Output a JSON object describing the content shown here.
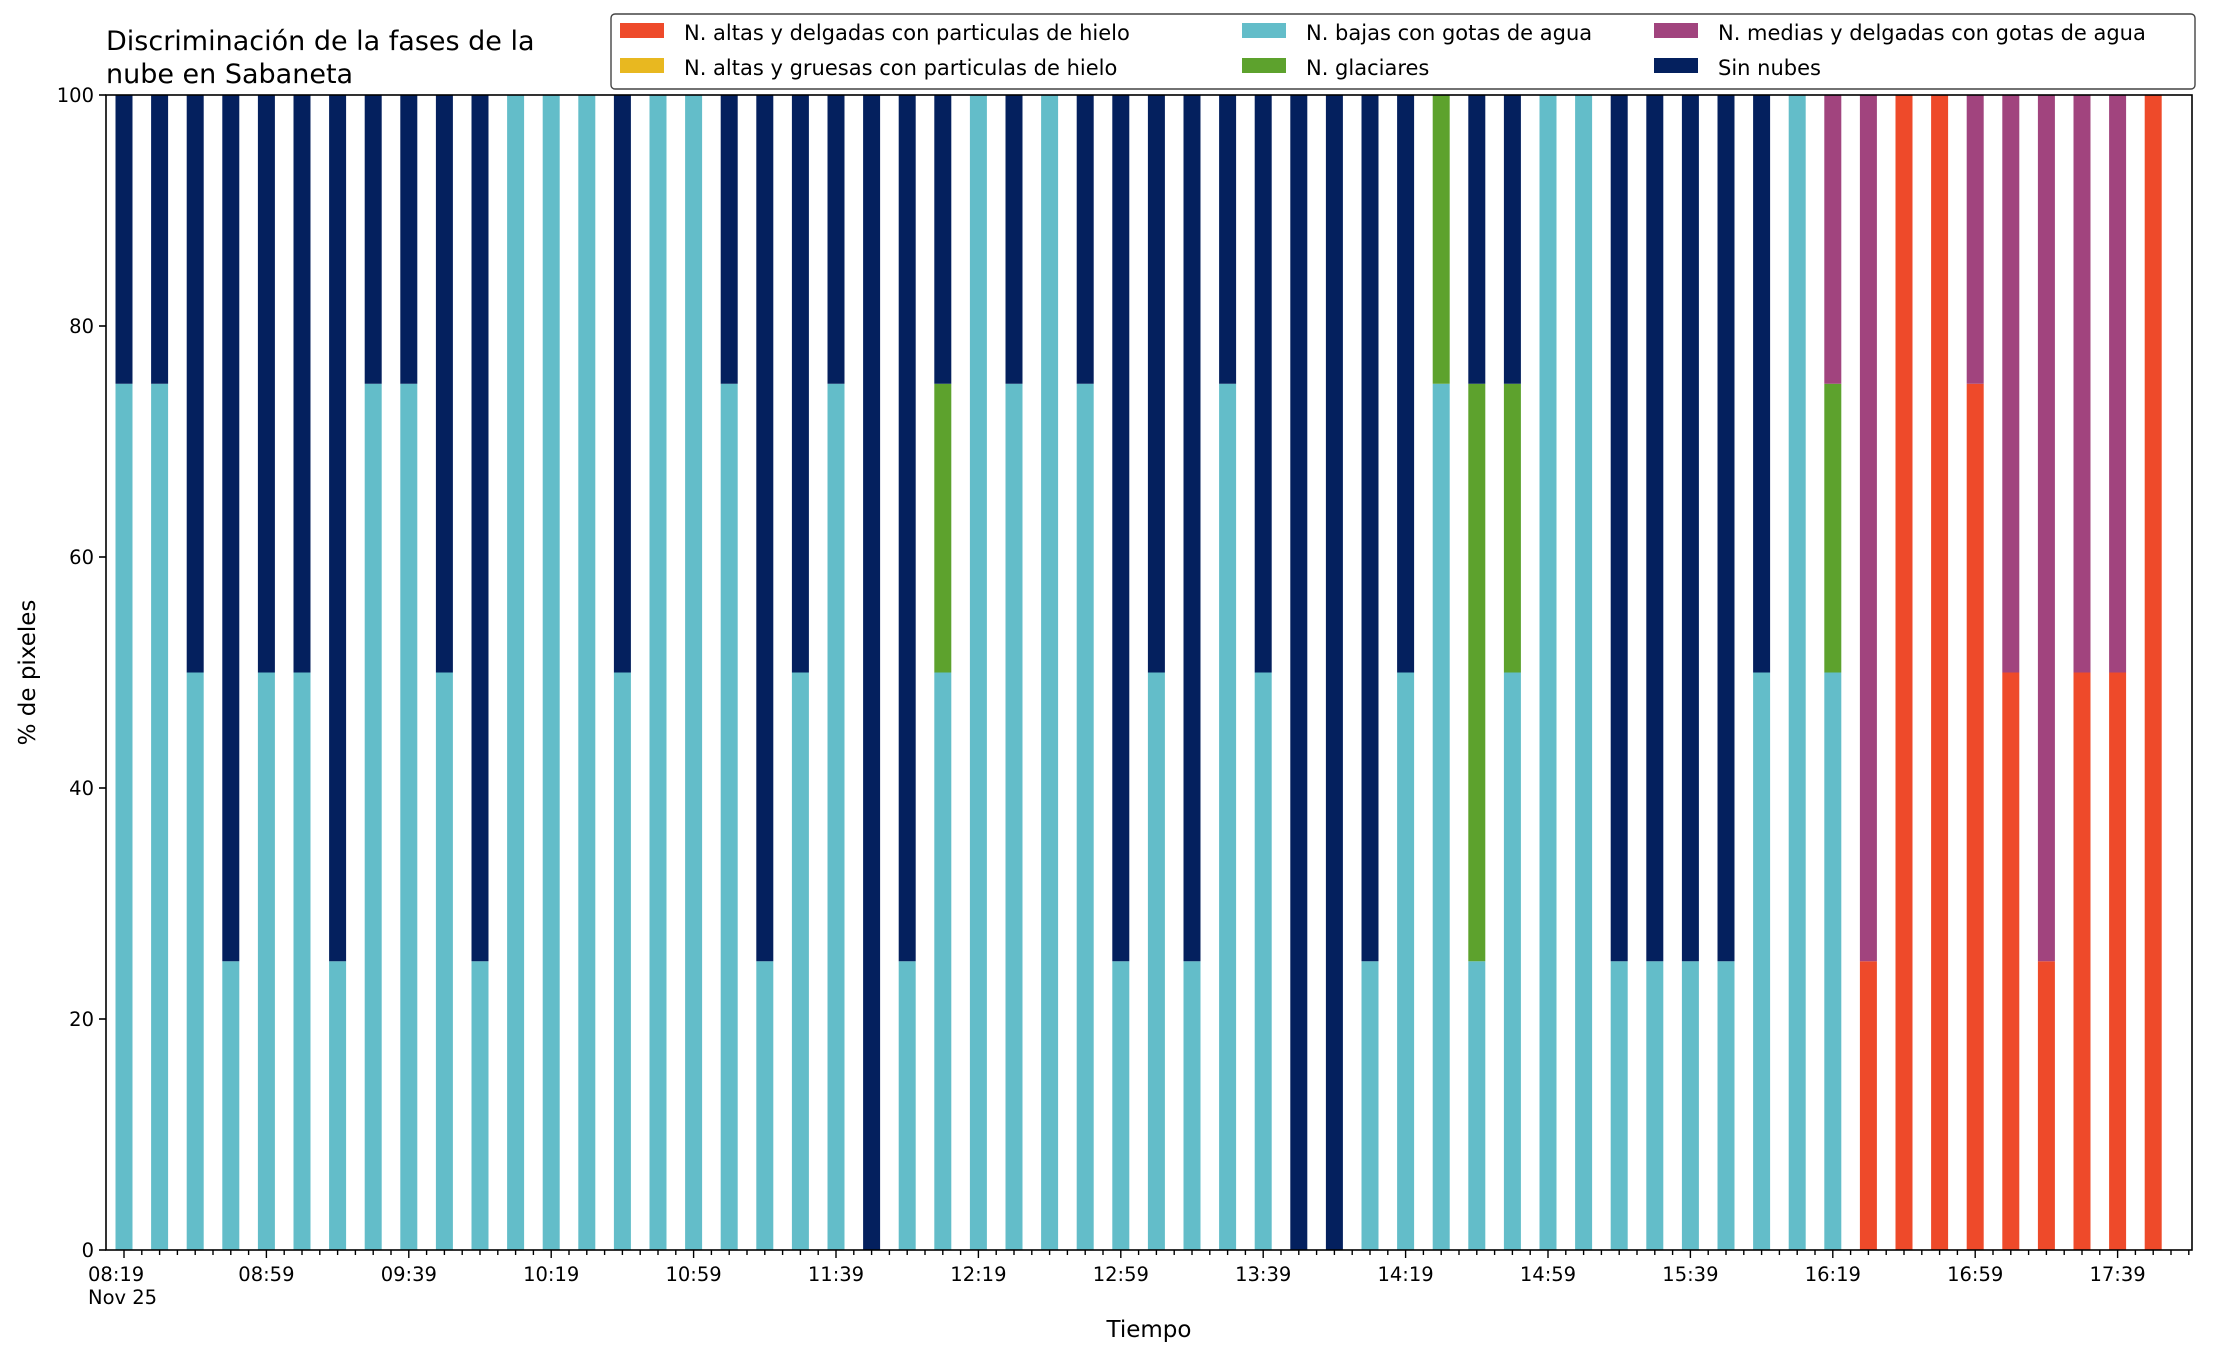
{
  "chart_data": {
    "type": "bar",
    "stacked": true,
    "title": "Discriminación de la fases de la\nnube en Sabaneta",
    "xlabel": "Tiempo",
    "ylabel": "% de pixeles",
    "ylim": [
      0,
      100
    ],
    "yticks": [
      0,
      20,
      40,
      60,
      80,
      100
    ],
    "grid": false,
    "legend_position": "top-right",
    "x_tick_labels": [
      "08:19\nNov 25",
      "08:59",
      "09:39",
      "10:19",
      "10:59",
      "11:39",
      "12:19",
      "12:59",
      "13:39",
      "14:19",
      "14:59",
      "15:39",
      "16:19",
      "16:59",
      "17:39"
    ],
    "categories": [
      "08:19",
      "08:29",
      "08:39",
      "08:49",
      "08:59",
      "09:09",
      "09:19",
      "09:29",
      "09:39",
      "09:49",
      "09:59",
      "10:09",
      "10:19",
      "10:29",
      "10:39",
      "10:49",
      "10:59",
      "11:09",
      "11:19",
      "11:29",
      "11:39",
      "11:49",
      "11:59",
      "12:09",
      "12:19",
      "12:29",
      "12:39",
      "12:49",
      "12:59",
      "13:09",
      "13:19",
      "13:29",
      "13:39",
      "13:49",
      "13:59",
      "14:09",
      "14:19",
      "14:29",
      "14:39",
      "14:49",
      "14:59",
      "15:09",
      "15:19",
      "15:29",
      "15:39",
      "15:49",
      "15:59",
      "16:09",
      "16:19",
      "16:29",
      "16:39",
      "16:49",
      "16:59",
      "17:09",
      "17:19",
      "17:29",
      "17:39",
      "17:49"
    ],
    "series": [
      {
        "name": "N. altas y delgadas con particulas de hielo",
        "color": "#ee4a2a",
        "values": [
          0,
          0,
          0,
          0,
          0,
          0,
          0,
          0,
          0,
          0,
          0,
          0,
          0,
          0,
          0,
          0,
          0,
          0,
          0,
          0,
          0,
          0,
          0,
          0,
          0,
          0,
          0,
          0,
          0,
          0,
          0,
          0,
          0,
          0,
          0,
          0,
          0,
          0,
          0,
          0,
          0,
          0,
          0,
          0,
          0,
          0,
          0,
          0,
          0,
          25,
          100,
          100,
          75,
          50,
          25,
          50,
          50,
          100
        ]
      },
      {
        "name": "N. altas y gruesas con particulas de hielo",
        "color": "#e8b820",
        "values": [
          0,
          0,
          0,
          0,
          0,
          0,
          0,
          0,
          0,
          0,
          0,
          0,
          0,
          0,
          0,
          0,
          0,
          0,
          0,
          0,
          0,
          0,
          0,
          0,
          0,
          0,
          0,
          0,
          0,
          0,
          0,
          0,
          0,
          0,
          0,
          0,
          0,
          0,
          0,
          0,
          0,
          0,
          0,
          0,
          0,
          0,
          0,
          0,
          0,
          0,
          0,
          0,
          0,
          0,
          0,
          0,
          0,
          0
        ]
      },
      {
        "name": "N. bajas con gotas de agua",
        "color": "#63bdc9",
        "values": [
          75,
          75,
          50,
          25,
          50,
          50,
          25,
          75,
          75,
          50,
          25,
          100,
          100,
          100,
          50,
          100,
          100,
          75,
          25,
          50,
          75,
          0,
          25,
          50,
          100,
          75,
          100,
          75,
          25,
          50,
          25,
          75,
          50,
          0,
          0,
          25,
          50,
          75,
          25,
          50,
          100,
          100,
          25,
          25,
          25,
          25,
          50,
          100,
          50,
          0,
          0,
          0,
          0,
          0,
          0,
          0,
          0,
          0
        ]
      },
      {
        "name": "N. glaciares",
        "color": "#5da22d",
        "values": [
          0,
          0,
          0,
          0,
          0,
          0,
          0,
          0,
          0,
          0,
          0,
          0,
          0,
          0,
          0,
          0,
          0,
          0,
          0,
          0,
          0,
          0,
          0,
          25,
          0,
          0,
          0,
          0,
          0,
          0,
          0,
          0,
          0,
          0,
          0,
          0,
          0,
          25,
          50,
          25,
          0,
          0,
          0,
          0,
          0,
          0,
          0,
          0,
          25,
          0,
          0,
          0,
          0,
          0,
          0,
          0,
          0,
          0
        ]
      },
      {
        "name": "N. medias y delgadas con gotas de agua",
        "color": "#a1447e",
        "values": [
          0,
          0,
          0,
          0,
          0,
          0,
          0,
          0,
          0,
          0,
          0,
          0,
          0,
          0,
          0,
          0,
          0,
          0,
          0,
          0,
          0,
          0,
          0,
          0,
          0,
          0,
          0,
          0,
          0,
          0,
          0,
          0,
          0,
          0,
          0,
          0,
          0,
          0,
          0,
          0,
          0,
          0,
          0,
          0,
          0,
          0,
          0,
          0,
          25,
          75,
          0,
          0,
          25,
          50,
          75,
          50,
          50,
          0
        ]
      },
      {
        "name": "Sin nubes",
        "color": "#04205e",
        "values": [
          25,
          25,
          50,
          75,
          50,
          50,
          75,
          25,
          25,
          50,
          75,
          0,
          0,
          0,
          50,
          0,
          0,
          25,
          75,
          50,
          25,
          100,
          75,
          25,
          0,
          25,
          0,
          25,
          75,
          50,
          75,
          25,
          50,
          100,
          100,
          75,
          50,
          0,
          25,
          25,
          0,
          0,
          75,
          75,
          75,
          75,
          50,
          0,
          0,
          0,
          0,
          0,
          0,
          0,
          0,
          0,
          0,
          0
        ]
      }
    ]
  }
}
